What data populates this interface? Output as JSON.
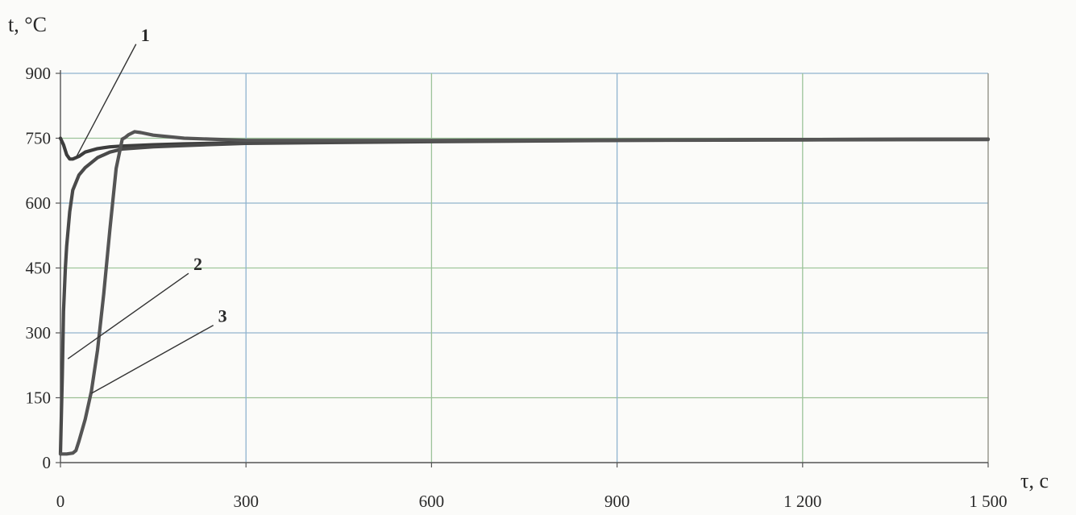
{
  "chart_data": {
    "type": "line",
    "title": "",
    "ylabel": "t, °C",
    "xlabel": "τ, c",
    "xlim": [
      0,
      1500
    ],
    "ylim": [
      0,
      900
    ],
    "xticks": [
      0,
      300,
      600,
      900,
      1200,
      1500
    ],
    "xtick_labels": [
      "0",
      "300",
      "600",
      "900",
      "1 200",
      "1 500"
    ],
    "yticks": [
      0,
      150,
      300,
      450,
      600,
      750,
      900
    ],
    "ytick_labels": [
      "0",
      "150",
      "300",
      "450",
      "600",
      "750",
      "900"
    ],
    "grid": true,
    "legend": "none",
    "series": [
      {
        "name": "1",
        "color": "#3d3d3d",
        "x": [
          0,
          5,
          10,
          15,
          20,
          30,
          40,
          60,
          80,
          100,
          150,
          200,
          300,
          600,
          900,
          1200,
          1500
        ],
        "y": [
          750,
          735,
          712,
          702,
          702,
          708,
          718,
          726,
          730,
          732,
          735,
          737,
          740,
          743,
          745,
          747,
          748
        ]
      },
      {
        "name": "2",
        "color": "#4a4a4a",
        "x": [
          0,
          3,
          5,
          8,
          10,
          15,
          20,
          30,
          40,
          60,
          80,
          100,
          150,
          200,
          300,
          600,
          900,
          1200,
          1500
        ],
        "y": [
          20,
          200,
          350,
          450,
          500,
          580,
          630,
          665,
          682,
          705,
          718,
          725,
          730,
          733,
          738,
          742,
          745,
          746,
          747
        ]
      },
      {
        "name": "3",
        "color": "#555555",
        "x": [
          0,
          10,
          20,
          25,
          30,
          40,
          50,
          60,
          70,
          80,
          90,
          100,
          105,
          110,
          120,
          130,
          150,
          200,
          300,
          600,
          900,
          1200,
          1500
        ],
        "y": [
          20,
          20,
          22,
          28,
          50,
          100,
          165,
          260,
          390,
          540,
          680,
          748,
          752,
          758,
          765,
          763,
          757,
          750,
          745,
          745,
          746,
          747,
          748
        ]
      }
    ],
    "annotations": [
      {
        "text": "1",
        "anchor_x": 25,
        "anchor_y": 705,
        "label_x": 130,
        "label_y": 975
      },
      {
        "text": "2",
        "anchor_x": 12,
        "anchor_y": 240,
        "label_x": 215,
        "label_y": 445
      },
      {
        "text": "3",
        "anchor_x": 50,
        "anchor_y": 160,
        "label_x": 255,
        "label_y": 325
      }
    ]
  }
}
